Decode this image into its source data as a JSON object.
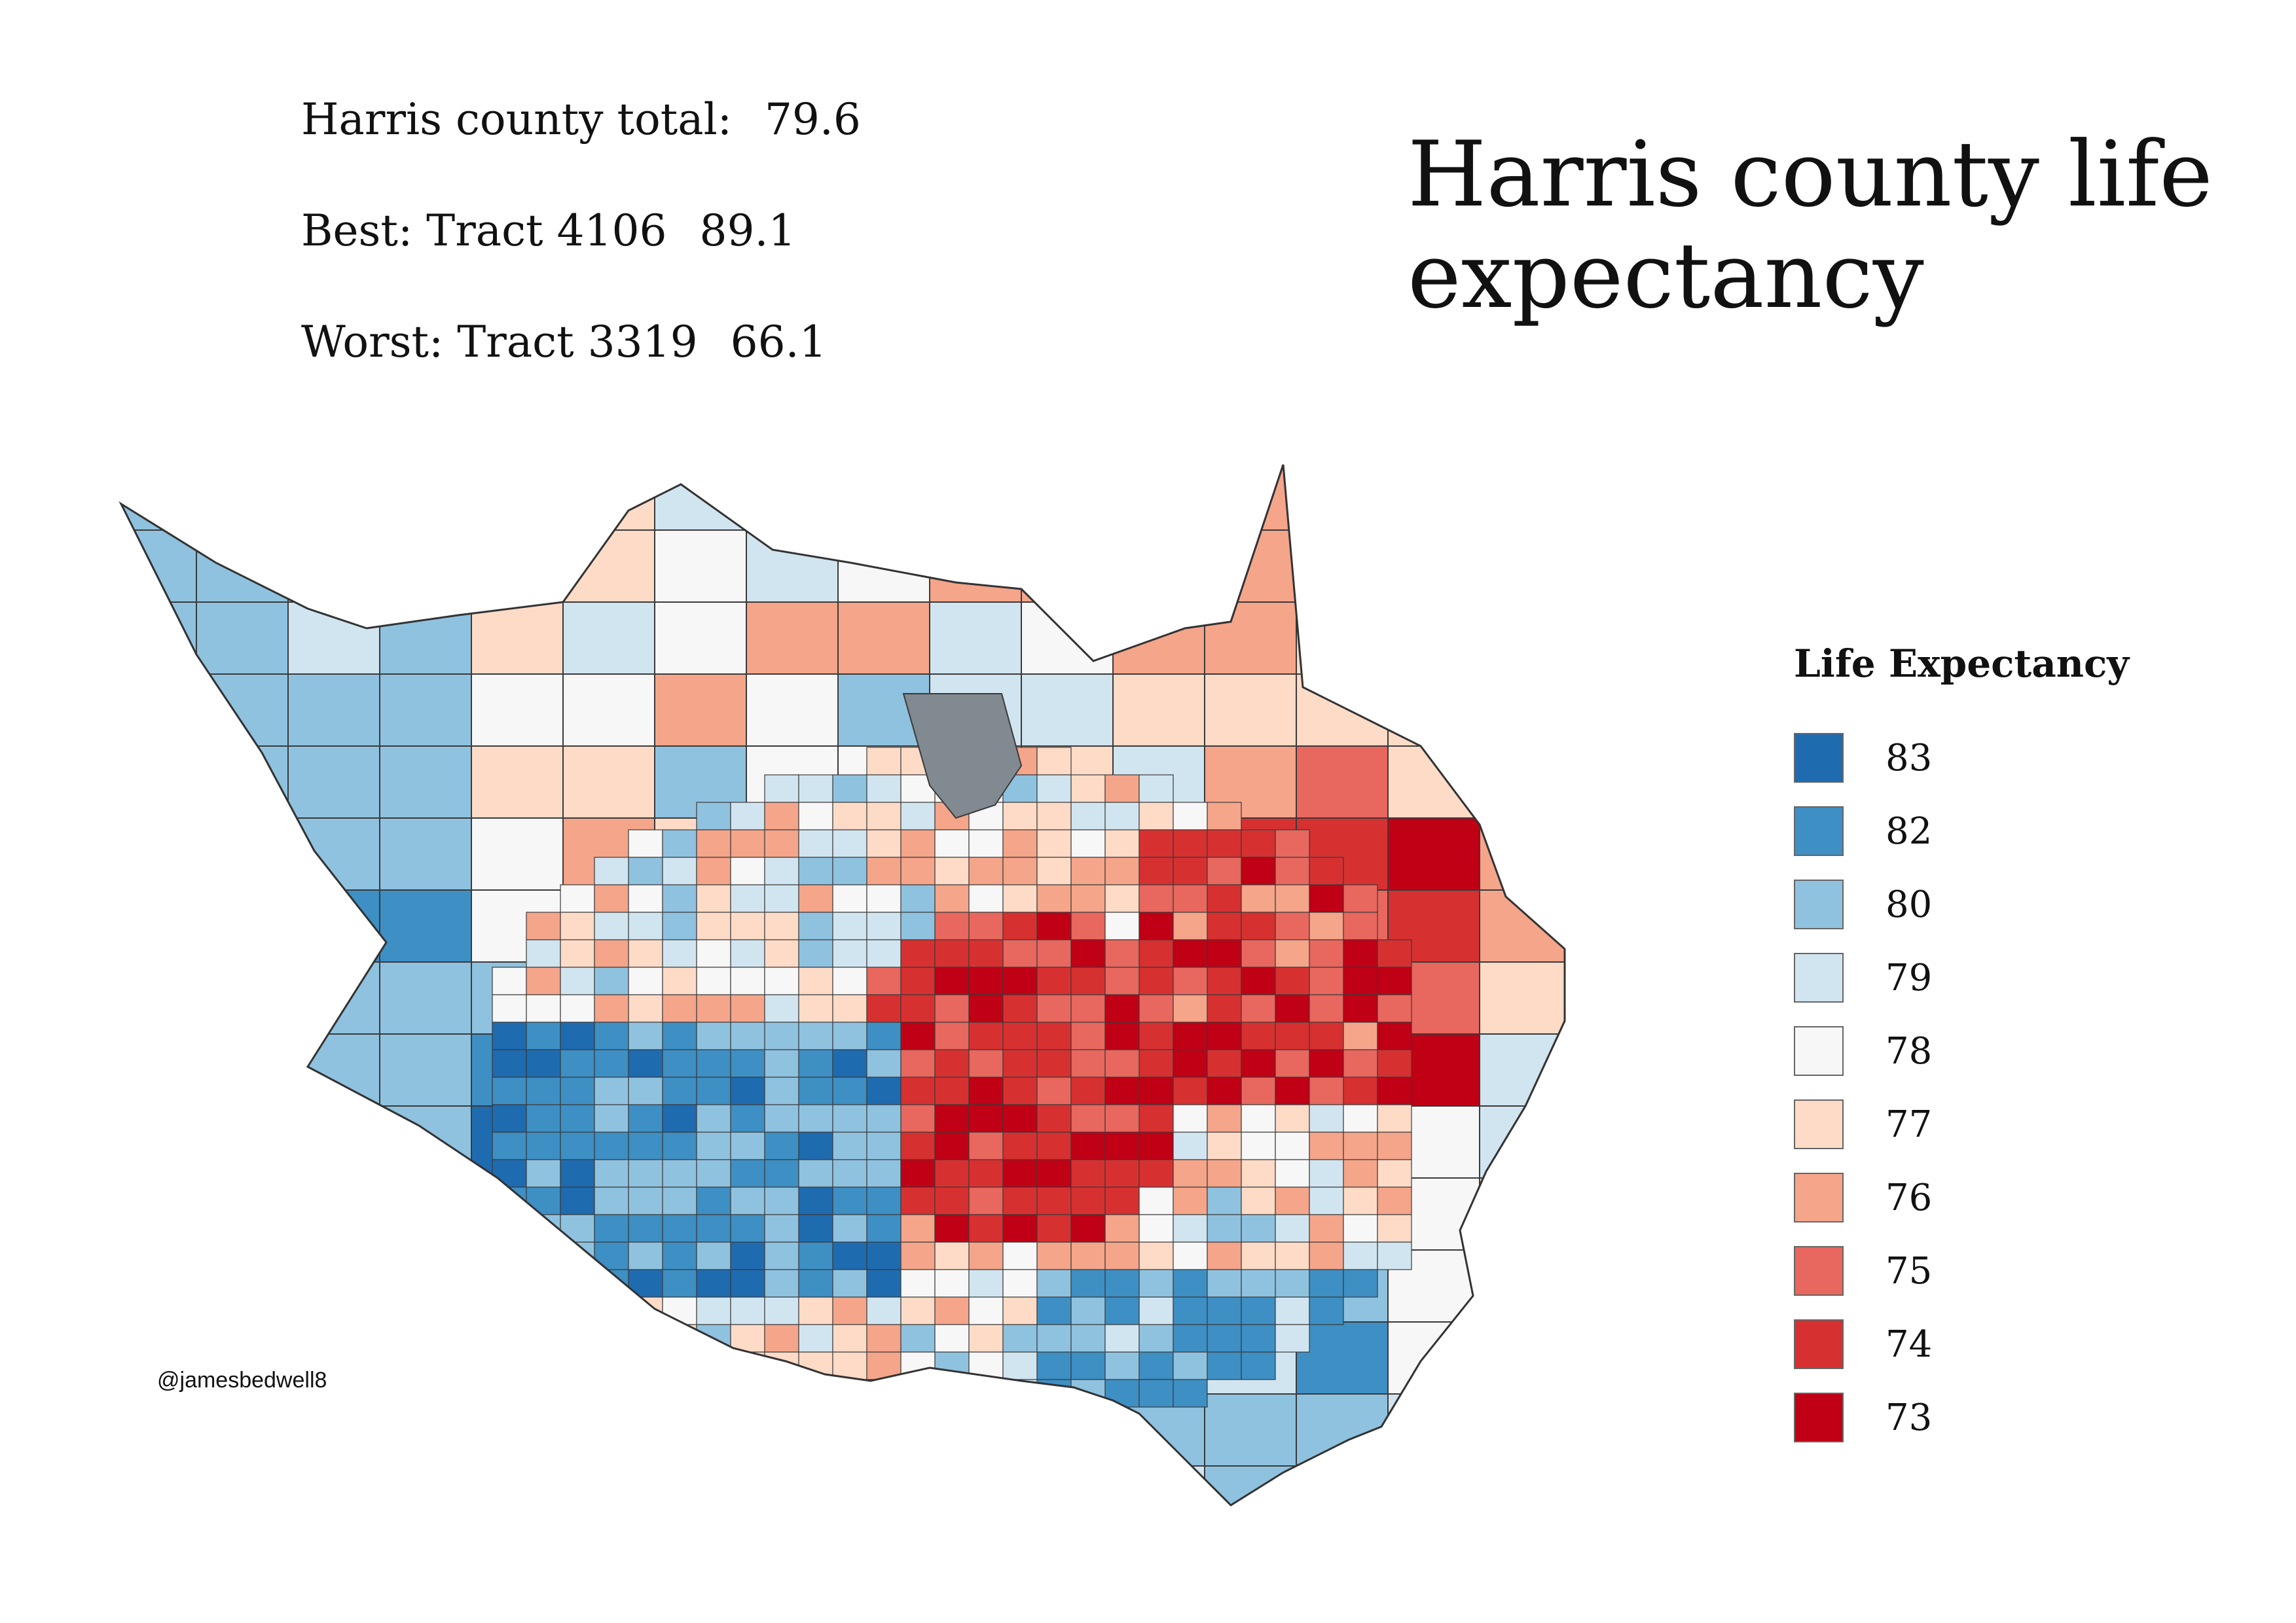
{
  "title": "Harris county life expectancy",
  "stats": [
    {
      "label": "Harris county total:",
      "value": "79.6"
    },
    {
      "label": "Best: Tract 4106",
      "value": "89.1"
    },
    {
      "label": "Worst: Tract 3319",
      "value": "66.1"
    }
  ],
  "legend": {
    "title": "Life Expectancy",
    "items": [
      {
        "label": "83",
        "color": "#1f6bb0"
      },
      {
        "label": "82",
        "color": "#3d8fc4"
      },
      {
        "label": "80",
        "color": "#8fc2df"
      },
      {
        "label": "79",
        "color": "#d1e5f0"
      },
      {
        "label": "78",
        "color": "#f7f7f7"
      },
      {
        "label": "77",
        "color": "#fddbc7"
      },
      {
        "label": "76",
        "color": "#f4a58a"
      },
      {
        "label": "75",
        "color": "#e8675e"
      },
      {
        "label": "74",
        "color": "#d73031"
      },
      {
        "label": "73",
        "color": "#c00015"
      }
    ]
  },
  "no_data_color": "#808a90",
  "credit": "@jamesbedwell8"
}
